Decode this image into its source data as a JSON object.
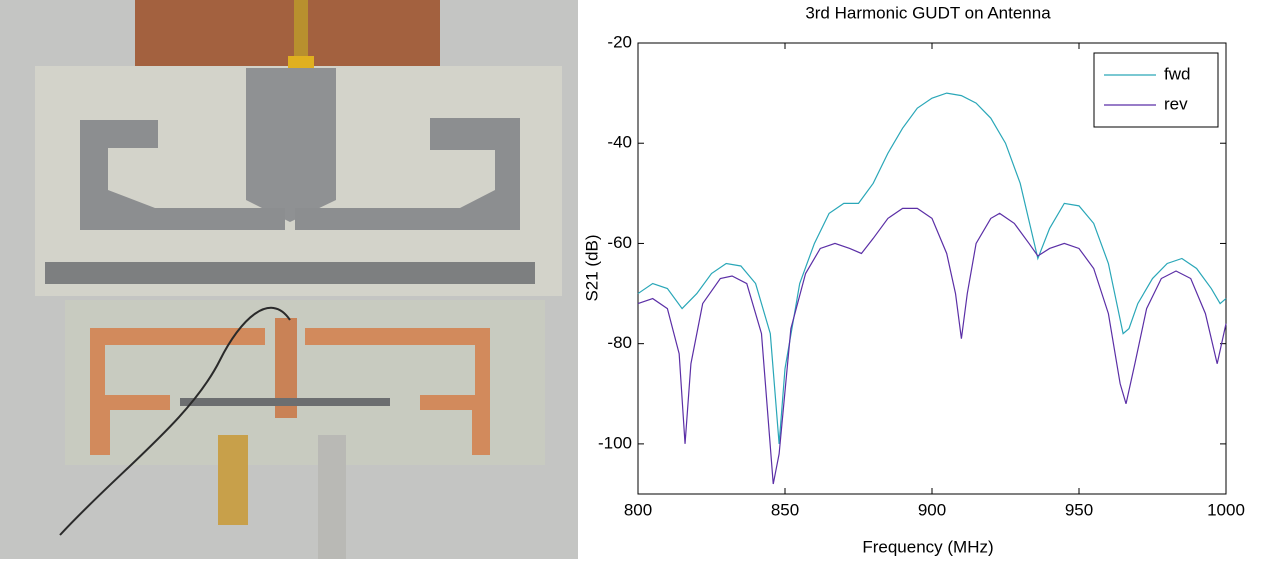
{
  "chart_data": {
    "type": "line",
    "title": "3rd Harmonic GUDT on Antenna",
    "xlabel": "Frequency (MHz)",
    "ylabel": "S21 (dB)",
    "xlim": [
      800,
      1000
    ],
    "xticks": [
      800,
      850,
      900,
      950,
      1000
    ],
    "ylim": [
      -110,
      -20
    ],
    "yticks": [
      -100,
      -80,
      -60,
      -40,
      -20
    ],
    "grid": false,
    "legend": "upper right",
    "series": [
      {
        "name": "fwd",
        "color": "#2aa7b8",
        "x": [
          800,
          805,
          810,
          815,
          820,
          825,
          830,
          835,
          840,
          845,
          848,
          850,
          855,
          860,
          865,
          870,
          875,
          880,
          885,
          890,
          895,
          900,
          905,
          910,
          915,
          920,
          925,
          930,
          934,
          936,
          940,
          945,
          950,
          955,
          960,
          965,
          967,
          970,
          975,
          980,
          985,
          990,
          995,
          998,
          1000
        ],
        "values": [
          -70,
          -68,
          -69,
          -73,
          -70,
          -66,
          -64,
          -64.5,
          -68,
          -78,
          -100,
          -85,
          -68,
          -60,
          -54,
          -52,
          -52,
          -48,
          -42,
          -37,
          -33,
          -31,
          -30,
          -30.5,
          -32,
          -35,
          -40,
          -48,
          -58,
          -63,
          -57,
          -52,
          -52.5,
          -56,
          -64,
          -78,
          -77,
          -72,
          -67,
          -64,
          -63,
          -65,
          -69,
          -72,
          -71
        ]
      },
      {
        "name": "rev",
        "color": "#5b2fa6",
        "x": [
          800,
          805,
          810,
          814,
          816,
          818,
          822,
          828,
          832,
          837,
          842,
          846,
          848,
          852,
          857,
          862,
          867,
          872,
          876,
          880,
          885,
          890,
          895,
          900,
          905,
          908,
          910,
          912,
          915,
          920,
          923,
          928,
          933,
          936,
          940,
          945,
          950,
          955,
          960,
          964,
          966,
          969,
          973,
          978,
          983,
          988,
          993,
          997,
          1000
        ],
        "values": [
          -72,
          -71,
          -73,
          -82,
          -100,
          -84,
          -72,
          -67,
          -66.5,
          -68,
          -78,
          -108,
          -102,
          -77,
          -66,
          -61,
          -60,
          -61,
          -62,
          -59,
          -55,
          -53,
          -53,
          -55,
          -62,
          -70,
          -79,
          -70,
          -60,
          -55,
          -54,
          -56,
          -60,
          -62.5,
          -61,
          -60,
          -61,
          -65,
          -74,
          -88,
          -92,
          -84,
          -73,
          -67,
          -65.5,
          -67,
          -74,
          -84,
          -76
        ]
      }
    ]
  }
}
